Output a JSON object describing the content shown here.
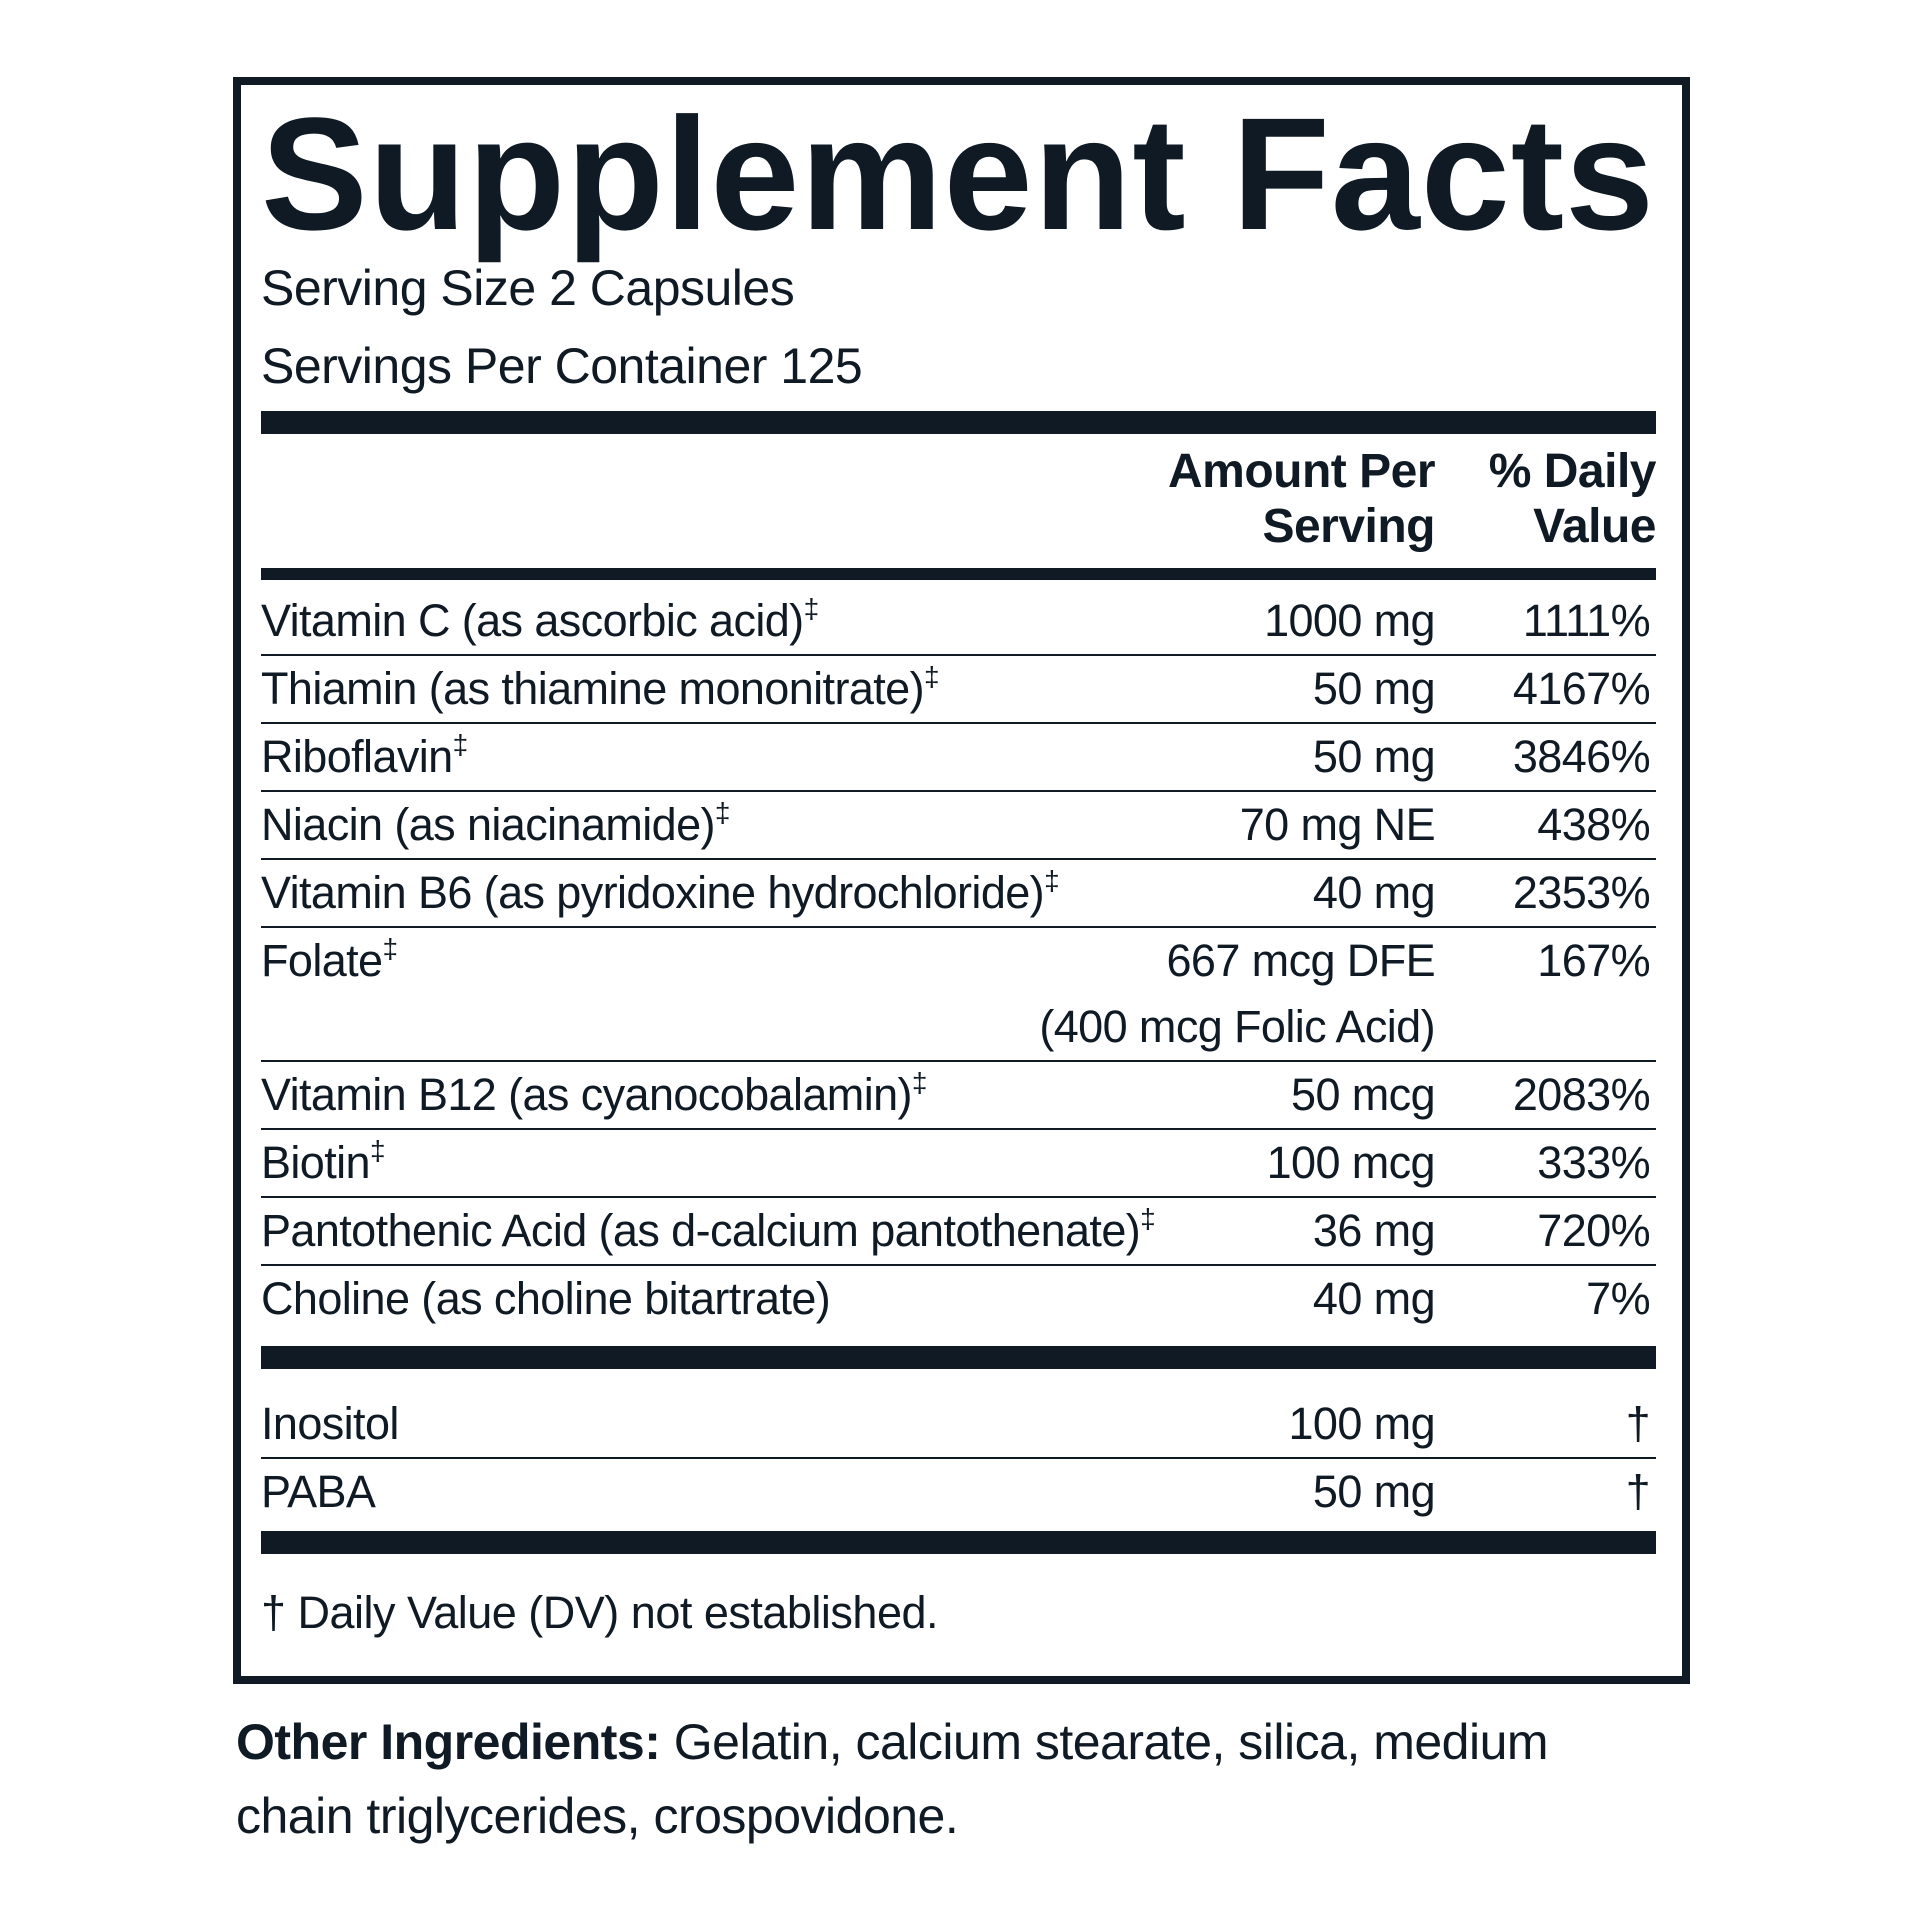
{
  "title": "Supplement Facts",
  "serving_size": "Serving Size 2 Capsules",
  "servings_per_container": "Servings Per Container 125",
  "table": {
    "header": [
      "Amount Per Serving",
      "% Daily Value"
    ],
    "rows": [
      {
        "name": "Vitamin C (as ascorbic acid)",
        "mark": "‡",
        "amount": "1000 mg",
        "dv": "1111%"
      },
      {
        "name": "Thiamin (as thiamine mononitrate)",
        "mark": "‡",
        "amount": "50 mg",
        "dv": "4167%"
      },
      {
        "name": "Riboflavin",
        "mark": "‡",
        "amount": "50 mg",
        "dv": "3846%"
      },
      {
        "name": "Niacin (as niacinamide)",
        "mark": "‡",
        "amount": "70 mg NE",
        "dv": "438%"
      },
      {
        "name": "Vitamin B6 (as pyridoxine hydrochloride)",
        "mark": "‡",
        "amount": "40 mg",
        "dv": "2353%"
      },
      {
        "name": "Folate",
        "mark": "‡",
        "amount": "667 mcg DFE",
        "amount_note": "(400 mcg Folic Acid)",
        "dv": "167%"
      },
      {
        "name": "Vitamin B12 (as cyanocobalamin)",
        "mark": "‡",
        "amount": "50 mcg",
        "dv": "2083%"
      },
      {
        "name": "Biotin",
        "mark": "‡",
        "amount": "100 mcg",
        "dv": "333%"
      },
      {
        "name": "Pantothenic Acid (as d-calcium pantothenate)",
        "mark": "‡",
        "amount": "36 mg",
        "dv": "720%"
      },
      {
        "name": "Choline (as choline bitartrate)",
        "amount": "40 mg",
        "dv": "7%"
      }
    ],
    "other_rows": [
      {
        "name": "Inositol",
        "amount": "100 mg",
        "dv": "†"
      },
      {
        "name": "PABA",
        "amount": "50 mg",
        "dv": "†"
      }
    ]
  },
  "footnote": "† Daily Value (DV) not established.",
  "other_ingredients": {
    "label": "Other Ingredients:",
    "text": "Gelatin, calcium stearate, silica, medium chain triglycerides, crospovidone."
  }
}
